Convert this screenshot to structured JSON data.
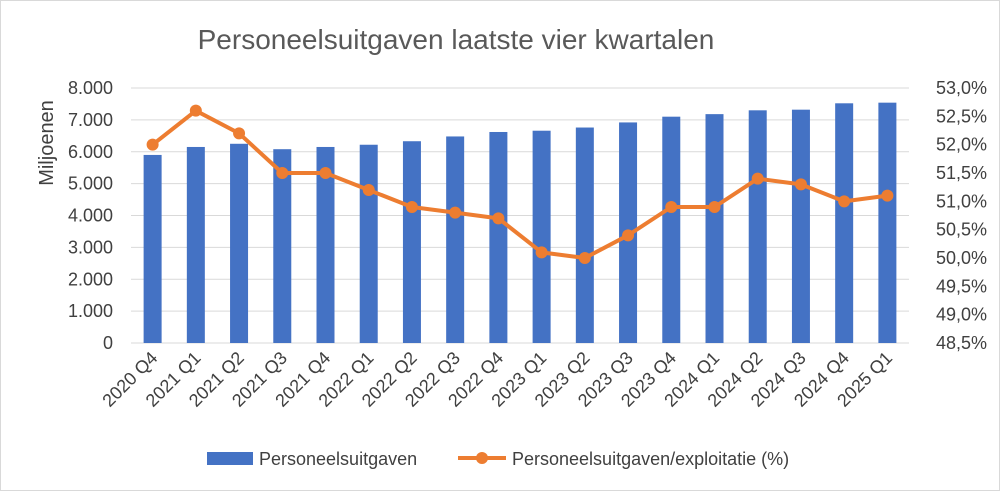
{
  "chart_data": {
    "type": "bar",
    "title": "Personeelsuitgaven laatste vier kwartalen",
    "ylabel": "Miljoenen",
    "categories": [
      "2020 Q4",
      "2021 Q1",
      "2021 Q2",
      "2021 Q3",
      "2021 Q4",
      "2022 Q1",
      "2022 Q2",
      "2022 Q3",
      "2022 Q4",
      "2023 Q1",
      "2023 Q2",
      "2023 Q3",
      "2023 Q4",
      "2024 Q1",
      "2024 Q2",
      "2024 Q3",
      "2024 Q4",
      "2025 Q1"
    ],
    "ylim": [
      0,
      8000
    ],
    "y_ticks": [
      "0",
      "1.000",
      "2.000",
      "3.000",
      "4.000",
      "5.000",
      "6.000",
      "7.000",
      "8.000"
    ],
    "y2lim": [
      48.5,
      53.0
    ],
    "y2_ticks": [
      "48,5%",
      "49,0%",
      "49,5%",
      "50,0%",
      "50,5%",
      "51,0%",
      "51,5%",
      "52,0%",
      "52,5%",
      "53,0%"
    ],
    "grid": true,
    "legend_position": "bottom",
    "series": [
      {
        "name": "Personeelsuitgaven",
        "type": "bar",
        "axis": "left",
        "color": "#4472C4",
        "values": [
          5900,
          6150,
          6250,
          6080,
          6150,
          6220,
          6330,
          6480,
          6620,
          6660,
          6760,
          6920,
          7100,
          7180,
          7300,
          7320,
          7520,
          7540
        ]
      },
      {
        "name": "Personeelsuitgaven/exploitatie (%)",
        "type": "line",
        "axis": "right",
        "color": "#ED7D31",
        "values": [
          52.0,
          52.6,
          52.2,
          51.5,
          51.5,
          51.2,
          50.9,
          50.8,
          50.7,
          50.1,
          50.0,
          50.4,
          50.9,
          50.9,
          51.4,
          51.3,
          51.0,
          51.1
        ]
      }
    ]
  }
}
